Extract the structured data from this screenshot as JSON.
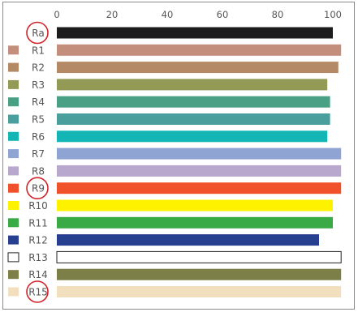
{
  "chart_data": {
    "type": "bar",
    "orientation": "horizontal",
    "title": "",
    "xlabel": "",
    "ylabel": "",
    "xlim": [
      0,
      103
    ],
    "x_ticks": [
      0,
      20,
      40,
      60,
      80,
      100
    ],
    "x_tick_labels": [
      "0",
      "20",
      "40",
      "60",
      "80",
      "100"
    ],
    "grid": false,
    "categories": [
      "Ra",
      "R1",
      "R2",
      "R3",
      "R4",
      "R5",
      "R6",
      "R7",
      "R8",
      "R9",
      "R10",
      "R11",
      "R12",
      "R13",
      "R14",
      "R15"
    ],
    "values": [
      100,
      103,
      102,
      98,
      99,
      99,
      98,
      103,
      103,
      103,
      100,
      100,
      95,
      103,
      103,
      103
    ],
    "bar_colors": [
      "#1c1c1c",
      "#c48e7c",
      "#b48a66",
      "#939a55",
      "#4aa084",
      "#4a9e9c",
      "#13b5b5",
      "#8fa4d3",
      "#b9a8cd",
      "#f0512b",
      "#fff200",
      "#3aaa47",
      "#263f8f",
      "#ffffff",
      "#7c7f48",
      "#f2dfbd"
    ],
    "swatches": [
      false,
      true,
      true,
      true,
      true,
      true,
      true,
      true,
      true,
      true,
      true,
      true,
      true,
      true,
      true,
      true
    ],
    "circled": [
      "Ra",
      "R9",
      "R15"
    ],
    "circle_color": "#d2232a"
  }
}
